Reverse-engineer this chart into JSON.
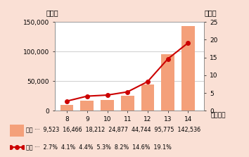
{
  "years": [
    8,
    9,
    10,
    11,
    12,
    13,
    14
  ],
  "complaints": [
    9523,
    16466,
    18212,
    24877,
    44744,
    95775,
    142536
  ],
  "ratio": [
    2.7,
    4.1,
    4.4,
    5.3,
    8.2,
    14.6,
    19.1
  ],
  "bar_color": "#F4A07A",
  "line_color": "#CC0000",
  "background_color": "#FAE0D5",
  "plot_background": "#FFFFFF",
  "ylabel_left": "（件）",
  "ylabel_right": "（％）",
  "xlabel": "（年度）",
  "ylim_left": [
    0,
    150000
  ],
  "ylim_right": [
    0,
    25
  ],
  "yticks_left": [
    0,
    50000,
    100000,
    150000
  ],
  "yticks_right": [
    0,
    5,
    10,
    15,
    20,
    25
  ],
  "legend_label_bar": "件数",
  "legend_label_line": "割合",
  "legend_values_bar": [
    "9,523",
    "16,466",
    "18,212",
    "24,877",
    "44,744",
    "95,775",
    "142,536"
  ],
  "legend_values_line": [
    "2.7%",
    "4.1%",
    "4.4%",
    "5.3%",
    "8.2%",
    "14.6%",
    "19.1%"
  ]
}
